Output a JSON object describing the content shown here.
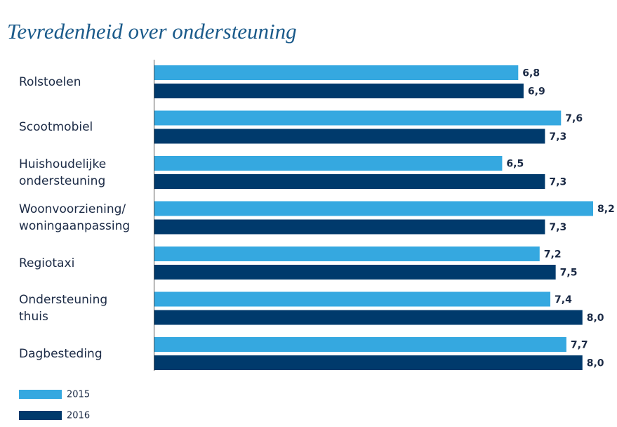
{
  "chart_data": {
    "type": "bar",
    "orientation": "horizontal",
    "title": "Tevredenheid over ondersteuning",
    "categories": [
      "Rolstoelen",
      "Scootmobiel",
      "Huishoudelijke\nondersteuning",
      "Woonvoorziening/\nwoningaanpassing",
      "Regiotaxi",
      "Ondersteuning\nthuis",
      "Dagbesteding"
    ],
    "series": [
      {
        "name": "2015",
        "color": "#35a8e0",
        "values": [
          6.8,
          7.6,
          6.5,
          8.2,
          7.2,
          7.4,
          7.7
        ],
        "value_labels": [
          "6,8",
          "7,6",
          "6,5",
          "8,2",
          "7,2",
          "7,4",
          "7,7"
        ]
      },
      {
        "name": "2016",
        "color": "#003a6c",
        "values": [
          6.9,
          7.3,
          7.3,
          7.3,
          7.5,
          8.0,
          8.0
        ],
        "value_labels": [
          "6,9",
          "7,3",
          "7,3",
          "7,3",
          "7,5",
          "8,0",
          "8,0"
        ]
      }
    ],
    "xlim": [
      0,
      8.2
    ]
  }
}
